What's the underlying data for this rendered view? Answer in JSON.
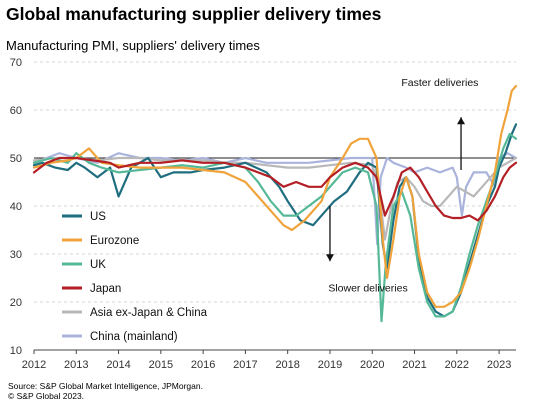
{
  "header": {
    "title": "Global manufacturing supplier delivery times",
    "subtitle": "Manufacturing PMI, suppliers' delivery times"
  },
  "footer": {
    "source": "Source: S&P Global Market Intelligence, JPMorgan.",
    "copyright": "© S&P Global 2023."
  },
  "chart_data": {
    "type": "line",
    "title": "Global manufacturing supplier delivery times",
    "subtitle": "Manufacturing PMI, suppliers' delivery times",
    "xlabel": "",
    "ylabel": "",
    "ylim": [
      10,
      70
    ],
    "xlim": [
      2012,
      2023.4
    ],
    "yticks": [
      "10",
      "20",
      "30",
      "40",
      "50",
      "60",
      "70"
    ],
    "xticks": [
      "2012",
      "2013",
      "2014",
      "2015",
      "2016",
      "2017",
      "2018",
      "2019",
      "2020",
      "2021",
      "2022",
      "2023"
    ],
    "reference_line": 50,
    "grid": "horizontal dashed",
    "legend_position": "left, inside plot",
    "annotations": [
      {
        "text": "Faster deliveries",
        "arrow": "up"
      },
      {
        "text": "Slower deliveries",
        "arrow": "down"
      }
    ],
    "series": [
      {
        "name": "US",
        "color": "#1f6e80",
        "points": [
          [
            2012,
            48.5
          ],
          [
            2012.2,
            49
          ],
          [
            2012.5,
            48
          ],
          [
            2012.8,
            47.5
          ],
          [
            2013,
            49
          ],
          [
            2013.2,
            48
          ],
          [
            2013.5,
            46
          ],
          [
            2013.8,
            48
          ],
          [
            2014,
            42
          ],
          [
            2014.3,
            48
          ],
          [
            2014.7,
            50
          ],
          [
            2015,
            46
          ],
          [
            2015.3,
            47
          ],
          [
            2015.7,
            47
          ],
          [
            2016,
            47.5
          ],
          [
            2016.5,
            48
          ],
          [
            2017,
            49
          ],
          [
            2017.5,
            47
          ],
          [
            2017.8,
            44
          ],
          [
            2018,
            41
          ],
          [
            2018.3,
            37
          ],
          [
            2018.6,
            36
          ],
          [
            2018.9,
            39
          ],
          [
            2019.1,
            41
          ],
          [
            2019.4,
            43
          ],
          [
            2019.7,
            47
          ],
          [
            2019.9,
            49
          ],
          [
            2020.1,
            48
          ],
          [
            2020.25,
            32
          ],
          [
            2020.35,
            27
          ],
          [
            2020.5,
            37
          ],
          [
            2020.65,
            44
          ],
          [
            2020.8,
            46
          ],
          [
            2020.95,
            42
          ],
          [
            2021.1,
            29
          ],
          [
            2021.3,
            21
          ],
          [
            2021.5,
            18
          ],
          [
            2021.7,
            17
          ],
          [
            2021.9,
            18
          ],
          [
            2022.1,
            22
          ],
          [
            2022.3,
            28
          ],
          [
            2022.5,
            34
          ],
          [
            2022.7,
            40
          ],
          [
            2022.9,
            44
          ],
          [
            2023,
            48
          ],
          [
            2023.15,
            51
          ],
          [
            2023.3,
            55
          ],
          [
            2023.4,
            57
          ]
        ]
      },
      {
        "name": "Eurozone",
        "color": "#f0a33a",
        "points": [
          [
            2012,
            48
          ],
          [
            2012.4,
            49
          ],
          [
            2012.8,
            49.5
          ],
          [
            2013,
            50
          ],
          [
            2013.3,
            52
          ],
          [
            2013.6,
            49
          ],
          [
            2014,
            48.5
          ],
          [
            2014.5,
            48
          ],
          [
            2015,
            48
          ],
          [
            2015.5,
            48
          ],
          [
            2016,
            47.5
          ],
          [
            2016.5,
            47
          ],
          [
            2017,
            45
          ],
          [
            2017.3,
            42
          ],
          [
            2017.6,
            39
          ],
          [
            2017.9,
            36
          ],
          [
            2018.1,
            35
          ],
          [
            2018.4,
            37
          ],
          [
            2018.8,
            41
          ],
          [
            2019,
            46
          ],
          [
            2019.3,
            50
          ],
          [
            2019.5,
            53
          ],
          [
            2019.7,
            54
          ],
          [
            2019.9,
            54
          ],
          [
            2020.1,
            50
          ],
          [
            2020.25,
            33
          ],
          [
            2020.35,
            25
          ],
          [
            2020.5,
            33
          ],
          [
            2020.65,
            42
          ],
          [
            2020.8,
            46
          ],
          [
            2020.95,
            42
          ],
          [
            2021.1,
            30
          ],
          [
            2021.3,
            22
          ],
          [
            2021.5,
            19
          ],
          [
            2021.7,
            19
          ],
          [
            2021.9,
            20
          ],
          [
            2022.1,
            22
          ],
          [
            2022.3,
            27
          ],
          [
            2022.5,
            33
          ],
          [
            2022.7,
            40
          ],
          [
            2022.9,
            47
          ],
          [
            2023.05,
            55
          ],
          [
            2023.2,
            60
          ],
          [
            2023.3,
            64
          ],
          [
            2023.4,
            65
          ]
        ]
      },
      {
        "name": "UK",
        "color": "#55b998",
        "points": [
          [
            2012,
            49
          ],
          [
            2012.4,
            50
          ],
          [
            2012.8,
            49
          ],
          [
            2013,
            51
          ],
          [
            2013.3,
            49
          ],
          [
            2013.6,
            48
          ],
          [
            2014,
            47
          ],
          [
            2014.5,
            47.5
          ],
          [
            2015,
            48
          ],
          [
            2015.5,
            48.5
          ],
          [
            2016,
            48
          ],
          [
            2016.5,
            49
          ],
          [
            2017,
            48
          ],
          [
            2017.3,
            45
          ],
          [
            2017.6,
            41
          ],
          [
            2017.9,
            38
          ],
          [
            2018.2,
            38
          ],
          [
            2018.5,
            40
          ],
          [
            2018.8,
            42
          ],
          [
            2019,
            44
          ],
          [
            2019.3,
            47
          ],
          [
            2019.6,
            48
          ],
          [
            2019.9,
            47
          ],
          [
            2020.1,
            40
          ],
          [
            2020.22,
            16
          ],
          [
            2020.32,
            28
          ],
          [
            2020.5,
            40
          ],
          [
            2020.7,
            43
          ],
          [
            2020.9,
            38
          ],
          [
            2021.1,
            27
          ],
          [
            2021.3,
            20
          ],
          [
            2021.5,
            17
          ],
          [
            2021.7,
            17
          ],
          [
            2021.9,
            18
          ],
          [
            2022.1,
            23
          ],
          [
            2022.3,
            30
          ],
          [
            2022.5,
            36
          ],
          [
            2022.7,
            41
          ],
          [
            2022.9,
            46
          ],
          [
            2023.1,
            52
          ],
          [
            2023.25,
            55
          ],
          [
            2023.4,
            54
          ]
        ]
      },
      {
        "name": "Japan",
        "color": "#b31f24",
        "points": [
          [
            2012,
            47
          ],
          [
            2012.3,
            49
          ],
          [
            2012.6,
            50
          ],
          [
            2013,
            50
          ],
          [
            2013.4,
            49.5
          ],
          [
            2013.8,
            49
          ],
          [
            2014,
            48
          ],
          [
            2014.5,
            49
          ],
          [
            2015,
            49
          ],
          [
            2015.5,
            49.5
          ],
          [
            2016,
            49
          ],
          [
            2016.5,
            49
          ],
          [
            2017,
            48
          ],
          [
            2017.3,
            47
          ],
          [
            2017.6,
            46
          ],
          [
            2017.9,
            44
          ],
          [
            2018.2,
            45
          ],
          [
            2018.5,
            44
          ],
          [
            2018.8,
            44
          ],
          [
            2019,
            46
          ],
          [
            2019.3,
            48
          ],
          [
            2019.6,
            49
          ],
          [
            2019.9,
            48
          ],
          [
            2020.1,
            46
          ],
          [
            2020.3,
            38
          ],
          [
            2020.5,
            42
          ],
          [
            2020.7,
            47
          ],
          [
            2020.9,
            48
          ],
          [
            2021.1,
            46
          ],
          [
            2021.3,
            43
          ],
          [
            2021.5,
            40
          ],
          [
            2021.7,
            38
          ],
          [
            2021.9,
            37.5
          ],
          [
            2022.1,
            37.5
          ],
          [
            2022.3,
            38
          ],
          [
            2022.5,
            37
          ],
          [
            2022.7,
            39
          ],
          [
            2022.9,
            42
          ],
          [
            2023.1,
            46
          ],
          [
            2023.25,
            48
          ],
          [
            2023.4,
            49
          ]
        ]
      },
      {
        "name": "Asia ex-Japan & China",
        "color": "#b8b8b8",
        "points": [
          [
            2012,
            49.5
          ],
          [
            2012.5,
            50
          ],
          [
            2013,
            50
          ],
          [
            2013.5,
            49.5
          ],
          [
            2014,
            50
          ],
          [
            2014.5,
            50
          ],
          [
            2015,
            49.5
          ],
          [
            2015.5,
            49.5
          ],
          [
            2016,
            49.5
          ],
          [
            2016.5,
            49
          ],
          [
            2017,
            49
          ],
          [
            2017.5,
            48.5
          ],
          [
            2018,
            48
          ],
          [
            2018.5,
            48
          ],
          [
            2019,
            48.5
          ],
          [
            2019.5,
            49
          ],
          [
            2020,
            48.5
          ],
          [
            2020.15,
            44
          ],
          [
            2020.3,
            33
          ],
          [
            2020.45,
            40
          ],
          [
            2020.6,
            45
          ],
          [
            2020.8,
            46
          ],
          [
            2021,
            44
          ],
          [
            2021.2,
            41
          ],
          [
            2021.4,
            40
          ],
          [
            2021.6,
            40
          ],
          [
            2021.8,
            42
          ],
          [
            2022,
            44
          ],
          [
            2022.2,
            43
          ],
          [
            2022.4,
            42
          ],
          [
            2022.6,
            44
          ],
          [
            2022.8,
            46
          ],
          [
            2023,
            48
          ],
          [
            2023.2,
            49
          ],
          [
            2023.4,
            50
          ]
        ]
      },
      {
        "name": "China (mainland)",
        "color": "#aab3dc",
        "points": [
          [
            2012,
            49
          ],
          [
            2012.3,
            50
          ],
          [
            2012.6,
            51
          ],
          [
            2013,
            50
          ],
          [
            2013.5,
            49
          ],
          [
            2014,
            51
          ],
          [
            2014.5,
            50
          ],
          [
            2015,
            50
          ],
          [
            2015.5,
            49.5
          ],
          [
            2016,
            50
          ],
          [
            2016.5,
            49
          ],
          [
            2017,
            50
          ],
          [
            2017.5,
            49
          ],
          [
            2018,
            49
          ],
          [
            2018.5,
            49
          ],
          [
            2019,
            49.5
          ],
          [
            2019.5,
            50
          ],
          [
            2020,
            50
          ],
          [
            2020.12,
            32
          ],
          [
            2020.2,
            46
          ],
          [
            2020.35,
            50
          ],
          [
            2020.5,
            49
          ],
          [
            2020.8,
            48
          ],
          [
            2021,
            47
          ],
          [
            2021.3,
            48
          ],
          [
            2021.6,
            47
          ],
          [
            2021.9,
            48
          ],
          [
            2022,
            46
          ],
          [
            2022.12,
            38
          ],
          [
            2022.22,
            44
          ],
          [
            2022.4,
            47
          ],
          [
            2022.7,
            47
          ],
          [
            2022.9,
            44
          ],
          [
            2023,
            50
          ],
          [
            2023.2,
            51
          ],
          [
            2023.4,
            50
          ]
        ]
      }
    ]
  }
}
